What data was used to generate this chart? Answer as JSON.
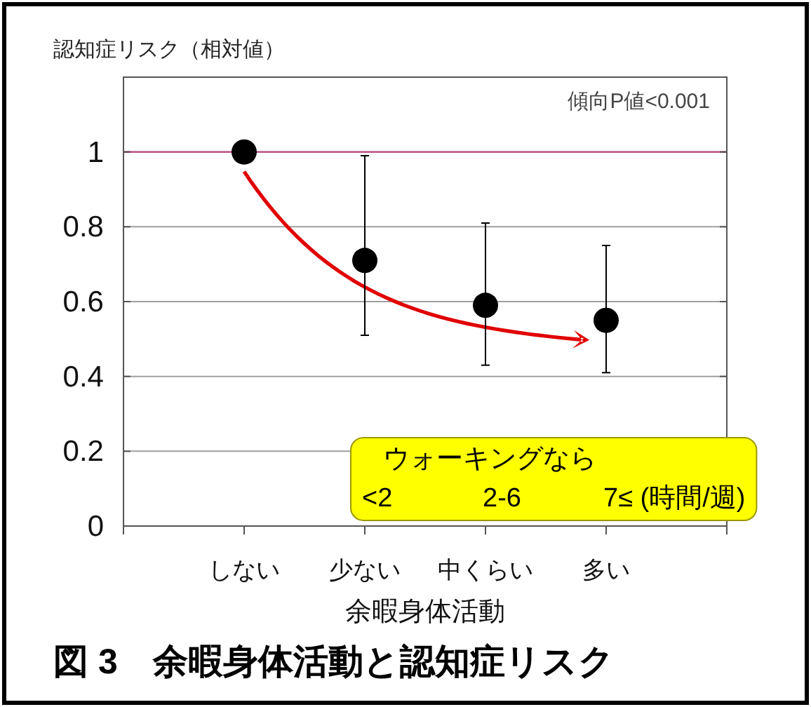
{
  "chart_data": {
    "type": "scatter",
    "title": "図 3　余暇身体活動と認知症リスク",
    "xlabel": "余暇身体活動",
    "ylabel": "認知症リスク（相対値）",
    "categories": [
      "しない",
      "少ない",
      "中くらい",
      "多い"
    ],
    "series": [
      {
        "color": "#000000",
        "values": [
          1,
          0.71,
          0.59,
          0.55
        ],
        "errors": [
          null,
          [
            0.51,
            0.99
          ],
          [
            0.43,
            0.81
          ],
          [
            0.41,
            0.75
          ]
        ]
      }
    ],
    "ylim": [
      0,
      1.2
    ],
    "yticks": [
      0,
      0.2,
      0.4,
      0.6,
      0.8,
      1
    ],
    "grid": "y",
    "marker": "circle",
    "ref_lines": [
      {
        "axis": "y",
        "value": 1,
        "color": "#c06090"
      }
    ],
    "annotations": [
      "傾向P値<0.001",
      "ウォーキングなら",
      "<2",
      "2-6",
      "7≤ (時間/週)"
    ]
  }
}
